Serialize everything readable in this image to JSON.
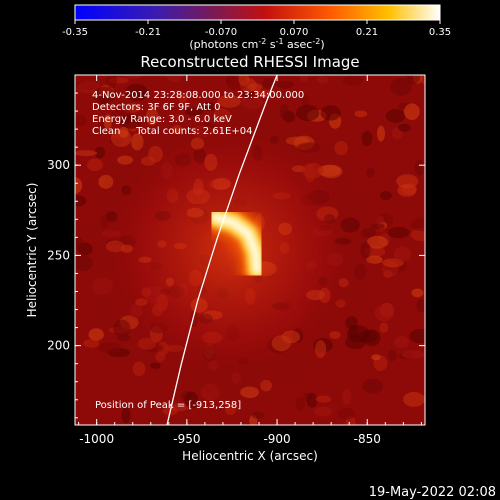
{
  "colorbar": {
    "ticks": [
      "-0.35",
      "-0.21",
      "-0.070",
      "0.070",
      "0.21",
      "0.35"
    ],
    "tick_values": [
      -0.35,
      -0.21,
      -0.07,
      0.07,
      0.21,
      0.35
    ],
    "range": [
      -0.35,
      0.35
    ],
    "unit_main": "(photons cm",
    "unit_exp1": "-2",
    "unit_mid": " s",
    "unit_exp2": "-1",
    "unit_mid2": " asec",
    "unit_exp3": "-2",
    "unit_close": ")"
  },
  "info": {
    "line1": "4-Nov-2014 23:28:08.000 to 23:34:00.000",
    "line2": "Detectors: 3F 6F 9F, Att 0",
    "line3": "Energy Range: 3.0 - 6.0 keV",
    "line4": "Clean     Total counts: 2.61E+04",
    "peak": "Position of Peak = [-913,258]"
  },
  "timestamp": "19-May-2022 02:08",
  "chart_data": {
    "type": "heatmap",
    "title": "Reconstructed RHESSI Image",
    "xlabel": "Heliocentric X (arcsec)",
    "ylabel": "Heliocentric Y (arcsec)",
    "xlim": [
      -1012,
      -818
    ],
    "ylim": [
      156,
      350
    ],
    "x_ticks": [
      -1000,
      -950,
      -900,
      -850
    ],
    "x_tick_labels": [
      "-1000",
      "-950",
      "-900",
      "-850"
    ],
    "y_ticks": [
      200,
      250,
      300
    ],
    "y_tick_labels": [
      "200",
      "250",
      "300"
    ],
    "colormap": "hot",
    "peak": [
      -913,
      258
    ],
    "source_arc": [
      [
        -934,
        271
      ],
      [
        -924,
        268
      ],
      [
        -916,
        262
      ],
      [
        -912,
        252
      ],
      [
        -911,
        242
      ]
    ],
    "limb": [
      [
        -961,
        156
      ],
      [
        -953,
        190
      ],
      [
        -944,
        225
      ],
      [
        -933,
        260
      ],
      [
        -921,
        295
      ],
      [
        -906,
        335
      ],
      [
        -900,
        350
      ]
    ]
  }
}
